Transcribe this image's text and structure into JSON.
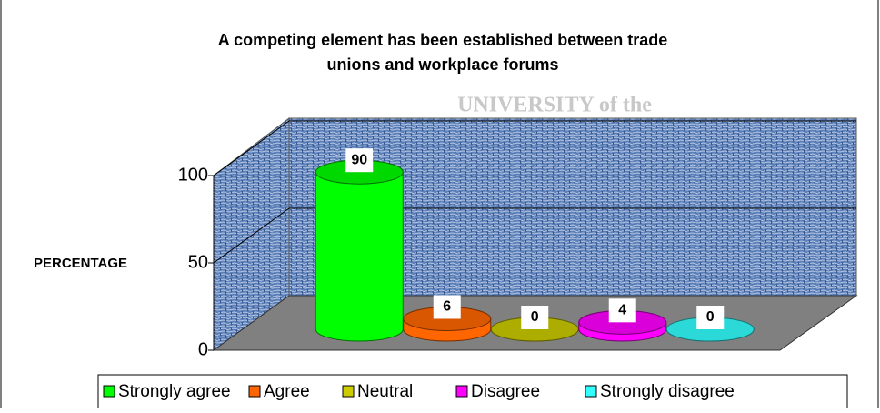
{
  "watermark": "UNIVERSITY of the",
  "chart_data": {
    "type": "bar",
    "title": [
      "A competing element has been established between trade",
      "unions and workplace forums"
    ],
    "y_label": "PERCENTAGE",
    "categories": [
      "Strongly agree",
      "Agree",
      "Neutral",
      "Disagree",
      "Strongly disagree"
    ],
    "values": [
      90,
      6,
      0,
      4,
      0
    ],
    "colors": [
      "#00ff00",
      "#ff6600",
      "#cccc00",
      "#ff00ff",
      "#33ffff"
    ],
    "ylim": [
      0,
      100
    ],
    "yticks": [
      0,
      50,
      100
    ],
    "grid": true,
    "legend": "bottom"
  }
}
